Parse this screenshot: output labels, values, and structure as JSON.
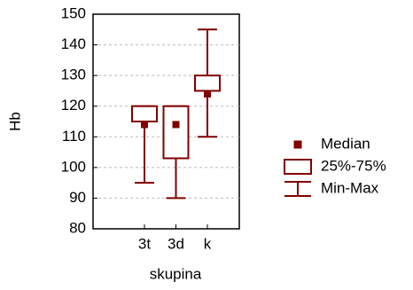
{
  "chart_data": {
    "type": "box",
    "x_label": "skupina",
    "y_label": "Hb",
    "categories": [
      "3t",
      "3d",
      "k"
    ],
    "min": [
      95,
      90,
      110
    ],
    "q1": [
      115,
      103,
      125
    ],
    "median": [
      114,
      114,
      124
    ],
    "q3": [
      120,
      120,
      130
    ],
    "max": [
      120,
      120,
      145
    ],
    "color": "#800000",
    "ylim": [
      80,
      150
    ],
    "yticks": [
      80,
      90,
      100,
      110,
      120,
      130,
      140,
      150
    ],
    "grid": true,
    "legend": [
      "Median",
      "25%-75%",
      "Min-Max"
    ],
    "legend_position": "right"
  }
}
